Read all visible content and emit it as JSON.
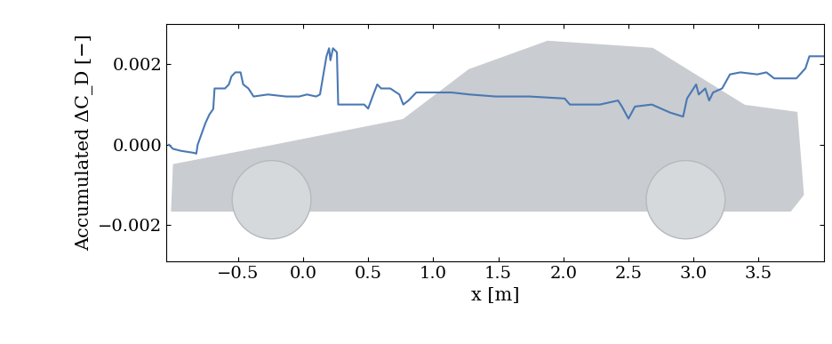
{
  "chart_data": {
    "type": "line",
    "x_label": "x [m]",
    "y_label": "Accumulated ΔC_D [−]",
    "series": [
      {
        "color": "#4a78b4",
        "line_style": "solid",
        "x": [
          -1.03,
          -1.0,
          -0.94,
          -0.84,
          -0.82,
          -0.81,
          -0.75,
          -0.72,
          -0.69,
          -0.68,
          -0.6,
          -0.57,
          -0.55,
          -0.52,
          -0.48,
          -0.46,
          -0.42,
          -0.38,
          -0.27,
          -0.13,
          -0.03,
          0.03,
          0.1,
          0.13,
          0.18,
          0.2,
          0.21,
          0.23,
          0.26,
          0.27,
          0.37,
          0.47,
          0.5,
          0.54,
          0.57,
          0.6,
          0.67,
          0.74,
          0.77,
          0.81,
          0.87,
          1.01,
          1.14,
          1.28,
          1.48,
          1.74,
          2.01,
          2.05,
          2.28,
          2.42,
          2.45,
          2.5,
          2.55,
          2.68,
          2.82,
          2.92,
          2.95,
          3.02,
          3.04,
          3.09,
          3.12,
          3.15,
          3.22,
          3.28,
          3.36,
          3.49,
          3.56,
          3.62,
          3.79,
          3.86,
          3.89,
          3.95,
          4.0
        ],
        "values": [
          0.0,
          -0.0001,
          -0.00015,
          -0.0002,
          -0.00022,
          0.0,
          0.00054,
          0.00075,
          0.00089,
          0.0014,
          0.0014,
          0.0015,
          0.0017,
          0.0018,
          0.0018,
          0.0015,
          0.0014,
          0.0012,
          0.00125,
          0.0012,
          0.0012,
          0.00125,
          0.0012,
          0.00125,
          0.0022,
          0.0024,
          0.0021,
          0.0024,
          0.0023,
          0.001,
          0.001,
          0.001,
          0.0009,
          0.00125,
          0.0015,
          0.0014,
          0.0014,
          0.00125,
          0.001,
          0.0011,
          0.0013,
          0.0013,
          0.0013,
          0.00125,
          0.0012,
          0.0012,
          0.00115,
          0.001,
          0.001,
          0.0011,
          0.00095,
          0.00065,
          0.00095,
          0.001,
          0.0008,
          0.0007,
          0.00115,
          0.0015,
          0.00125,
          0.0014,
          0.0011,
          0.0013,
          0.0014,
          0.00175,
          0.0018,
          0.00175,
          0.0018,
          0.00165,
          0.00165,
          0.0019,
          0.0022,
          0.0022,
          0.0022
        ]
      }
    ],
    "xlim": [
      -1.05,
      4.0
    ],
    "ylim": [
      -0.0029,
      0.003
    ],
    "xticks": [
      {
        "value": -0.5,
        "label": "−0.5"
      },
      {
        "value": 0.0,
        "label": "0.0"
      },
      {
        "value": 0.5,
        "label": "0.5"
      },
      {
        "value": 1.0,
        "label": "1.0"
      },
      {
        "value": 1.5,
        "label": "1.5"
      },
      {
        "value": 2.0,
        "label": "2.0"
      },
      {
        "value": 2.5,
        "label": "2.5"
      },
      {
        "value": 3.0,
        "label": "3.0"
      },
      {
        "value": 3.5,
        "label": "3.5"
      }
    ],
    "yticks": [
      {
        "value": -0.002,
        "label": "−0.002"
      },
      {
        "value": 0.0,
        "label": "0.000"
      },
      {
        "value": 0.002,
        "label": "0.002"
      }
    ],
    "grid": false
  }
}
